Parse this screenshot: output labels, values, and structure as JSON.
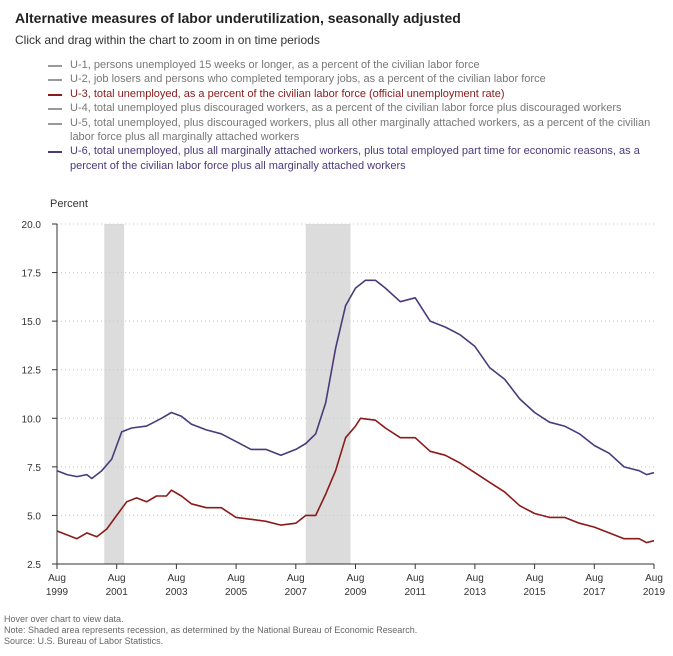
{
  "title": "Alternative measures of labor underutilization, seasonally adjusted",
  "subtitle": "Click and drag within the chart to zoom in on time periods",
  "legend": [
    {
      "label": "U-1, persons unemployed 15 weeks or longer, as a percent of the civilian labor force",
      "color": "#999999"
    },
    {
      "label": "U-2, job losers and persons who completed temporary jobs, as a percent of the civilian labor force",
      "color": "#999999"
    },
    {
      "label": "U-3, total unemployed, as a percent of the civilian labor force (official unemployment rate)",
      "color": "#8b1a1a"
    },
    {
      "label": "U-4, total unemployed plus discouraged workers, as a percent of the civilian labor force plus discouraged workers",
      "color": "#999999"
    },
    {
      "label": "U-5, total unemployed, plus discouraged workers, plus all other marginally attached workers, as a percent of the civilian labor force plus all marginally attached workers",
      "color": "#999999"
    },
    {
      "label": "U-6, total unemployed, plus all marginally attached workers, plus total employed part time for economic reasons, as a percent of the civilian labor force plus all marginally attached workers",
      "color": "#4b3a7a"
    }
  ],
  "footer": {
    "hover": "Hover over chart to view data.",
    "note": "Note: Shaded area represents recession, as determined by the National Bureau of Economic Research.",
    "source": "Source: U.S. Bureau of Labor Statistics."
  },
  "chart_data": {
    "type": "line",
    "ylabel": "Percent",
    "ylim": [
      2.5,
      20.0
    ],
    "yticks": [
      "20.0",
      "17.5",
      "15.0",
      "12.5",
      "10.0",
      "7.5",
      "5.0",
      "2.5"
    ],
    "xlim": [
      "1999-08",
      "2019-08"
    ],
    "xticks": [
      {
        "month": "Aug",
        "year": "1999",
        "date": "1999-08"
      },
      {
        "month": "Aug",
        "year": "2001",
        "date": "2001-08"
      },
      {
        "month": "Aug",
        "year": "2003",
        "date": "2003-08"
      },
      {
        "month": "Aug",
        "year": "2005",
        "date": "2005-08"
      },
      {
        "month": "Aug",
        "year": "2007",
        "date": "2007-08"
      },
      {
        "month": "Aug",
        "year": "2009",
        "date": "2009-08"
      },
      {
        "month": "Aug",
        "year": "2011",
        "date": "2011-08"
      },
      {
        "month": "Aug",
        "year": "2013",
        "date": "2013-08"
      },
      {
        "month": "Aug",
        "year": "2015",
        "date": "2015-08"
      },
      {
        "month": "Aug",
        "year": "2017",
        "date": "2017-08"
      },
      {
        "month": "Aug",
        "year": "2019",
        "date": "2019-08"
      }
    ],
    "grid": "horizontal dotted",
    "recessions": [
      [
        "2001-03",
        "2001-11"
      ],
      [
        "2007-12",
        "2009-06"
      ]
    ],
    "series": [
      {
        "name": "U-3, total unemployed, as a percent of the civilian labor force (official unemployment rate)",
        "color": "#8b1a1a",
        "points": [
          [
            "1999-08",
            4.2
          ],
          [
            "1999-12",
            4.0
          ],
          [
            "2000-04",
            3.8
          ],
          [
            "2000-08",
            4.1
          ],
          [
            "2000-12",
            3.9
          ],
          [
            "2001-04",
            4.3
          ],
          [
            "2001-08",
            5.0
          ],
          [
            "2001-12",
            5.7
          ],
          [
            "2002-04",
            5.9
          ],
          [
            "2002-08",
            5.7
          ],
          [
            "2002-12",
            6.0
          ],
          [
            "2003-04",
            6.0
          ],
          [
            "2003-06",
            6.3
          ],
          [
            "2003-10",
            6.0
          ],
          [
            "2004-02",
            5.6
          ],
          [
            "2004-08",
            5.4
          ],
          [
            "2005-02",
            5.4
          ],
          [
            "2005-08",
            4.9
          ],
          [
            "2006-02",
            4.8
          ],
          [
            "2006-08",
            4.7
          ],
          [
            "2007-02",
            4.5
          ],
          [
            "2007-08",
            4.6
          ],
          [
            "2007-12",
            5.0
          ],
          [
            "2008-04",
            5.0
          ],
          [
            "2008-08",
            6.1
          ],
          [
            "2008-12",
            7.3
          ],
          [
            "2009-04",
            9.0
          ],
          [
            "2009-08",
            9.6
          ],
          [
            "2009-10",
            10.0
          ],
          [
            "2010-04",
            9.9
          ],
          [
            "2010-08",
            9.5
          ],
          [
            "2011-02",
            9.0
          ],
          [
            "2011-08",
            9.0
          ],
          [
            "2012-02",
            8.3
          ],
          [
            "2012-08",
            8.1
          ],
          [
            "2013-02",
            7.7
          ],
          [
            "2013-08",
            7.2
          ],
          [
            "2014-02",
            6.7
          ],
          [
            "2014-08",
            6.2
          ],
          [
            "2015-02",
            5.5
          ],
          [
            "2015-08",
            5.1
          ],
          [
            "2016-02",
            4.9
          ],
          [
            "2016-08",
            4.9
          ],
          [
            "2017-02",
            4.6
          ],
          [
            "2017-08",
            4.4
          ],
          [
            "2018-02",
            4.1
          ],
          [
            "2018-08",
            3.8
          ],
          [
            "2019-02",
            3.8
          ],
          [
            "2019-05",
            3.6
          ],
          [
            "2019-08",
            3.7
          ]
        ]
      },
      {
        "name": "U-6, total unemployed, plus all marginally attached workers, plus total employed part time for economic reasons, as a percent of the civilian labor force plus all marginally attached workers",
        "color": "#4b3a7a",
        "points": [
          [
            "1999-08",
            7.3
          ],
          [
            "1999-12",
            7.1
          ],
          [
            "2000-04",
            7.0
          ],
          [
            "2000-08",
            7.1
          ],
          [
            "2000-10",
            6.9
          ],
          [
            "2001-02",
            7.3
          ],
          [
            "2001-06",
            7.9
          ],
          [
            "2001-10",
            9.3
          ],
          [
            "2002-02",
            9.5
          ],
          [
            "2002-08",
            9.6
          ],
          [
            "2003-02",
            10.0
          ],
          [
            "2003-06",
            10.3
          ],
          [
            "2003-10",
            10.1
          ],
          [
            "2004-02",
            9.7
          ],
          [
            "2004-08",
            9.4
          ],
          [
            "2005-02",
            9.2
          ],
          [
            "2005-08",
            8.8
          ],
          [
            "2006-02",
            8.4
          ],
          [
            "2006-08",
            8.4
          ],
          [
            "2007-02",
            8.1
          ],
          [
            "2007-08",
            8.4
          ],
          [
            "2007-12",
            8.7
          ],
          [
            "2008-04",
            9.2
          ],
          [
            "2008-08",
            10.8
          ],
          [
            "2008-12",
            13.6
          ],
          [
            "2009-04",
            15.8
          ],
          [
            "2009-08",
            16.7
          ],
          [
            "2009-12",
            17.1
          ],
          [
            "2010-04",
            17.1
          ],
          [
            "2010-08",
            16.7
          ],
          [
            "2011-02",
            16.0
          ],
          [
            "2011-08",
            16.2
          ],
          [
            "2012-02",
            15.0
          ],
          [
            "2012-08",
            14.7
          ],
          [
            "2013-02",
            14.3
          ],
          [
            "2013-08",
            13.7
          ],
          [
            "2014-02",
            12.6
          ],
          [
            "2014-08",
            12.0
          ],
          [
            "2015-02",
            11.0
          ],
          [
            "2015-08",
            10.3
          ],
          [
            "2016-02",
            9.8
          ],
          [
            "2016-08",
            9.6
          ],
          [
            "2017-02",
            9.2
          ],
          [
            "2017-08",
            8.6
          ],
          [
            "2018-02",
            8.2
          ],
          [
            "2018-08",
            7.5
          ],
          [
            "2019-02",
            7.3
          ],
          [
            "2019-05",
            7.1
          ],
          [
            "2019-08",
            7.2
          ]
        ]
      }
    ]
  }
}
